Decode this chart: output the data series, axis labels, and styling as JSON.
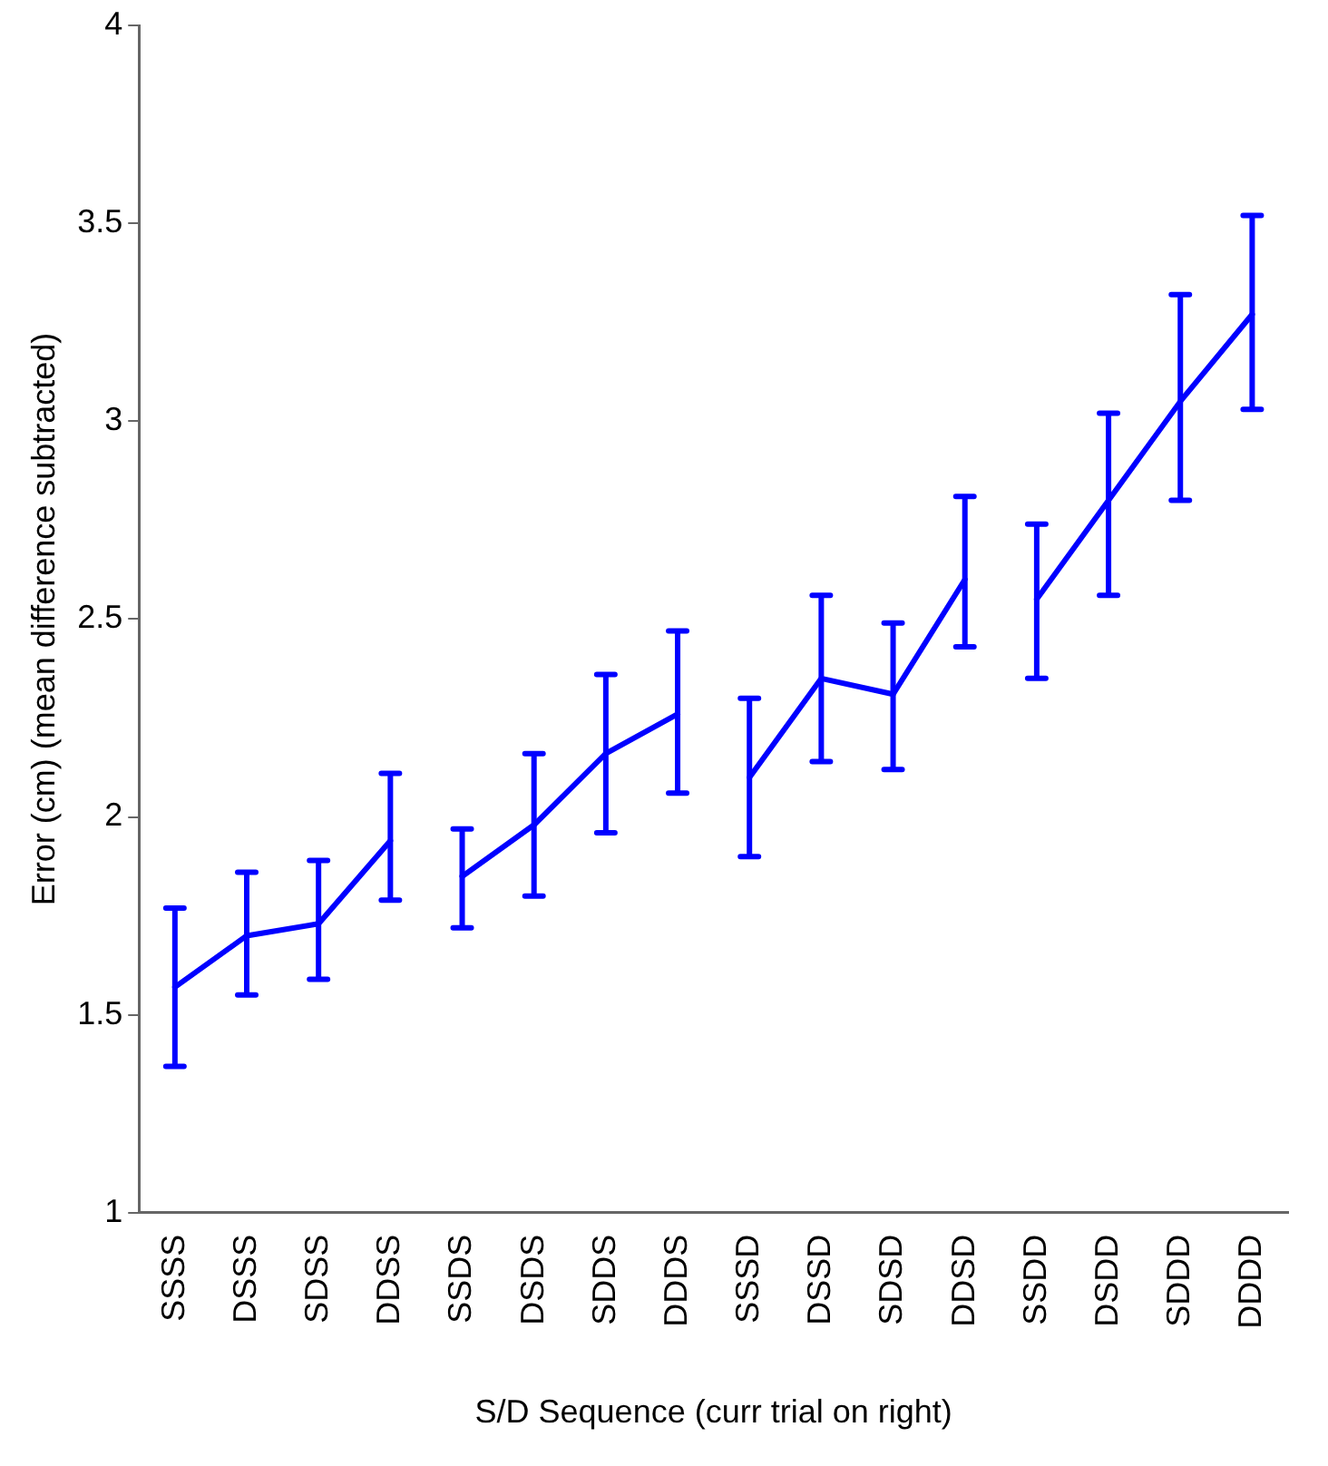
{
  "chart_data": {
    "type": "line",
    "xlabel": "S/D Sequence (curr trial on right)",
    "ylabel": "Error (cm) (mean difference subtracted)",
    "categories": [
      "SSSS",
      "DSSS",
      "SDSS",
      "DDSS",
      "SSDS",
      "DSDS",
      "SDDS",
      "DDDS",
      "SSSD",
      "DSSD",
      "SDSD",
      "DDSD",
      "SSDD",
      "DSDD",
      "SDDD",
      "DDDD"
    ],
    "ylim": [
      1,
      4
    ],
    "yticks": [
      1,
      1.5,
      2,
      2.5,
      3,
      3.5,
      4
    ],
    "grid": false,
    "legend": false,
    "marker": "none",
    "line_style": "solid",
    "series": [
      {
        "color": "#0000ff",
        "values": [
          1.57,
          1.7,
          1.73,
          1.94,
          null,
          null,
          null,
          null,
          null,
          null,
          null,
          null,
          null,
          null,
          null,
          null
        ],
        "errors": [
          [
            1.37,
            1.77
          ],
          [
            1.55,
            1.86
          ],
          [
            1.59,
            1.89
          ],
          [
            1.79,
            2.11
          ],
          null,
          null,
          null,
          null,
          null,
          null,
          null,
          null,
          null,
          null,
          null,
          null
        ]
      },
      {
        "color": "#0000ff",
        "values": [
          null,
          null,
          null,
          null,
          1.85,
          1.98,
          2.16,
          2.26,
          null,
          null,
          null,
          null,
          null,
          null,
          null,
          null
        ],
        "errors": [
          null,
          null,
          null,
          null,
          [
            1.72,
            1.97
          ],
          [
            1.8,
            2.16
          ],
          [
            1.96,
            2.36
          ],
          [
            2.06,
            2.47
          ],
          null,
          null,
          null,
          null,
          null,
          null,
          null,
          null
        ]
      },
      {
        "color": "#0000ff",
        "values": [
          null,
          null,
          null,
          null,
          null,
          null,
          null,
          null,
          2.1,
          2.35,
          2.31,
          2.6,
          null,
          null,
          null,
          null
        ],
        "errors": [
          null,
          null,
          null,
          null,
          null,
          null,
          null,
          null,
          [
            1.9,
            2.3
          ],
          [
            2.14,
            2.56
          ],
          [
            2.12,
            2.49
          ],
          [
            2.43,
            2.81
          ],
          null,
          null,
          null,
          null
        ]
      },
      {
        "color": "#0000ff",
        "values": [
          null,
          null,
          null,
          null,
          null,
          null,
          null,
          null,
          null,
          null,
          null,
          null,
          2.55,
          2.8,
          3.05,
          3.27
        ],
        "errors": [
          null,
          null,
          null,
          null,
          null,
          null,
          null,
          null,
          null,
          null,
          null,
          null,
          [
            2.35,
            2.74
          ],
          [
            2.56,
            3.02
          ],
          [
            2.8,
            3.32
          ],
          [
            3.03,
            3.52
          ]
        ]
      }
    ]
  }
}
